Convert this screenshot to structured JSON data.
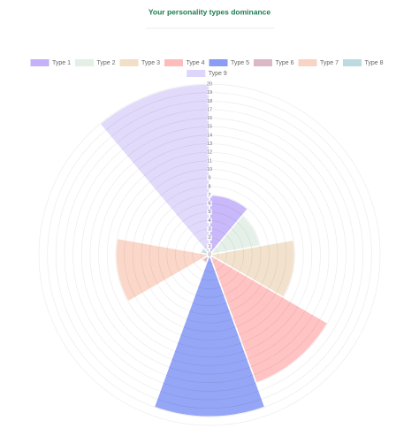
{
  "chart_data": {
    "type": "polarArea",
    "title": "Your personality types dominance",
    "categories": [
      "Type 1",
      "Type 2",
      "Type 3",
      "Type 4",
      "Type 5",
      "Type 6",
      "Type 7",
      "Type 8",
      "Type 9"
    ],
    "values": [
      7,
      6,
      10,
      16,
      19,
      1,
      11,
      1,
      20
    ],
    "colors": [
      "#c3b1f9",
      "#e2f0e6",
      "#f1dfc8",
      "#ffbcbc",
      "#8a9cf6",
      "#dcb8c6",
      "#f9d3c3",
      "#bcdadf",
      "#ded6fa"
    ],
    "ylim": [
      0,
      20
    ],
    "yticks": [
      0,
      1,
      2,
      3,
      4,
      5,
      6,
      7,
      8,
      9,
      10,
      11,
      12,
      13,
      14,
      15,
      16,
      17,
      18,
      19,
      20
    ],
    "grid": true,
    "legend": "top"
  }
}
